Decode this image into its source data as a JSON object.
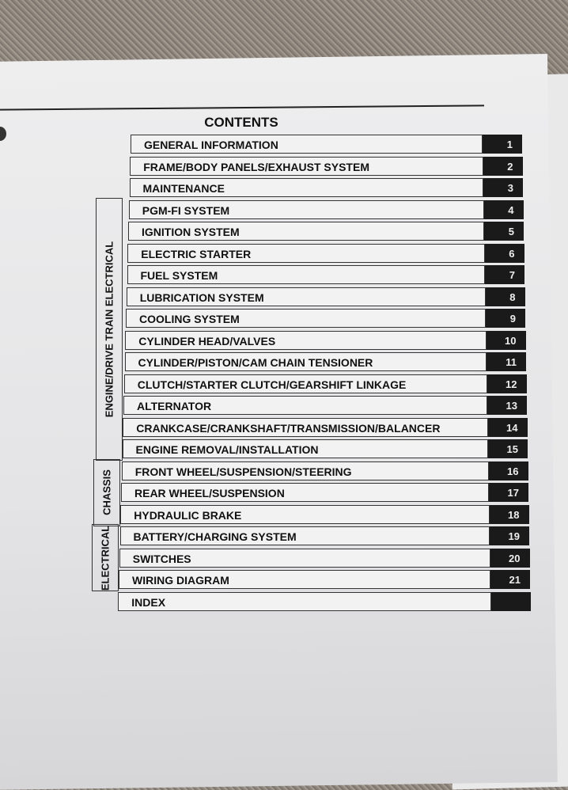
{
  "title": "CONTENTS",
  "groups": [
    {
      "label": "ENGINE/DRIVE TRAIN ELECTRICAL",
      "from": 3,
      "to": 14
    },
    {
      "label": "CHASSIS",
      "from": 15,
      "to": 17
    },
    {
      "label": "ELECTRICAL",
      "from": 18,
      "to": 20
    }
  ],
  "sections": [
    {
      "label": "GENERAL INFORMATION",
      "num": "1"
    },
    {
      "label": "FRAME/BODY PANELS/EXHAUST SYSTEM",
      "num": "2"
    },
    {
      "label": "MAINTENANCE",
      "num": "3"
    },
    {
      "label": "PGM-FI SYSTEM",
      "num": "4"
    },
    {
      "label": "IGNITION SYSTEM",
      "num": "5"
    },
    {
      "label": "ELECTRIC STARTER",
      "num": "6"
    },
    {
      "label": "FUEL SYSTEM",
      "num": "7"
    },
    {
      "label": "LUBRICATION SYSTEM",
      "num": "8"
    },
    {
      "label": "COOLING SYSTEM",
      "num": "9"
    },
    {
      "label": "CYLINDER HEAD/VALVES",
      "num": "10"
    },
    {
      "label": "CYLINDER/PISTON/CAM CHAIN TENSIONER",
      "num": "11"
    },
    {
      "label": "CLUTCH/STARTER CLUTCH/GEARSHIFT LINKAGE",
      "num": "12"
    },
    {
      "label": "ALTERNATOR",
      "num": "13"
    },
    {
      "label": "CRANKCASE/CRANKSHAFT/TRANSMISSION/BALANCER",
      "num": "14"
    },
    {
      "label": "ENGINE REMOVAL/INSTALLATION",
      "num": "15"
    },
    {
      "label": "FRONT WHEEL/SUSPENSION/STEERING",
      "num": "16"
    },
    {
      "label": "REAR WHEEL/SUSPENSION",
      "num": "17"
    },
    {
      "label": "HYDRAULIC BRAKE",
      "num": "18"
    },
    {
      "label": "BATTERY/CHARGING SYSTEM",
      "num": "19"
    },
    {
      "label": "SWITCHES",
      "num": "20"
    },
    {
      "label": "WIRING DIAGRAM",
      "num": "21"
    },
    {
      "label": "INDEX",
      "num": ""
    }
  ]
}
